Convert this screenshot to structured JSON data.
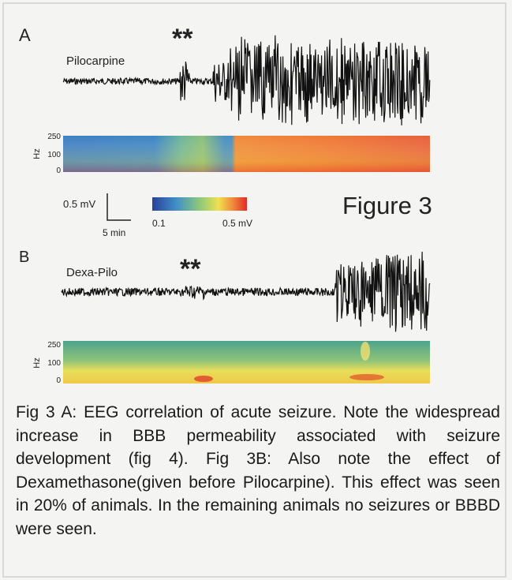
{
  "panel_a": {
    "label": "A",
    "marker": "**",
    "trace_label": "Pilocarpine",
    "hz_label": "Hz",
    "hz_ticks": [
      "250",
      "100",
      "0"
    ]
  },
  "scale_bar": {
    "amplitude": "0.5 mV",
    "time": "5 min"
  },
  "colorbar": {
    "min_label": "0.1",
    "max_label": "0.5 mV"
  },
  "figure_title": "Figure 3",
  "panel_b": {
    "label": "B",
    "marker": "**",
    "trace_label": "Dexa-Pilo",
    "hz_label": "Hz",
    "hz_ticks": [
      "250",
      "100",
      "0"
    ]
  },
  "caption": "Fig 3 A: EEG correlation of acute seizure. Note the widespread increase in BBB permeability associated with seizure development (fig 4). Fig 3B: Also note the effect of Dexamethasone(given before Pilocarpine). This effect was seen in 20% of animals. In the remaining animals no seizures or BBBD were seen."
}
